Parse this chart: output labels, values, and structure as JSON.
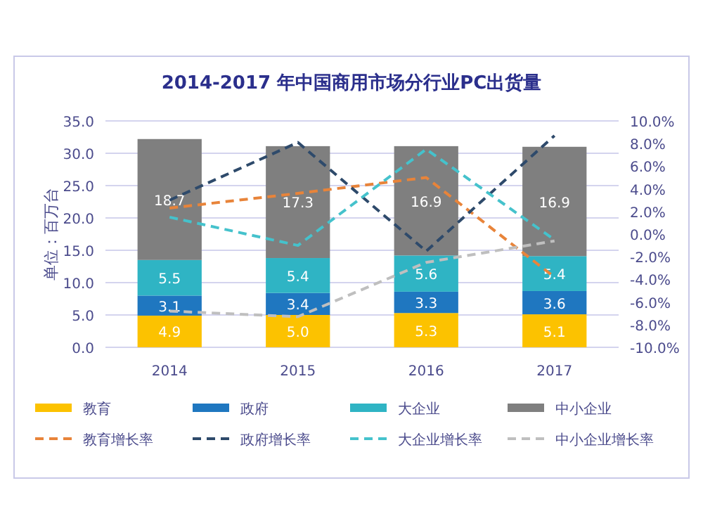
{
  "chart_data": {
    "type": "bar",
    "title": "2014-2017 年中国商用市场分行业PC出货量",
    "ylabel": "单位：百万台",
    "categories": [
      "2014",
      "2015",
      "2016",
      "2017"
    ],
    "stacked": true,
    "grid": "y",
    "legend": "bottom",
    "ylim": [
      0,
      35
    ],
    "yticks": [
      {
        "value": 0,
        "label": "0.0"
      },
      {
        "value": 5,
        "label": "5.0"
      },
      {
        "value": 10,
        "label": "10.0"
      },
      {
        "value": 15,
        "label": "15.0"
      },
      {
        "value": 20,
        "label": "20.0"
      },
      {
        "value": 25,
        "label": "25.0"
      },
      {
        "value": 30,
        "label": "30.0"
      },
      {
        "value": 35,
        "label": "35.0"
      }
    ],
    "y2lim": [
      -10,
      10
    ],
    "y2ticks": [
      {
        "value": -10,
        "label": "-10.0%"
      },
      {
        "value": -8,
        "label": "-8.0%"
      },
      {
        "value": -6,
        "label": "-6.0%"
      },
      {
        "value": -4,
        "label": "-4.0%"
      },
      {
        "value": -2,
        "label": "-2.0%"
      },
      {
        "value": 0,
        "label": "0.0%"
      },
      {
        "value": 2,
        "label": "2.0%"
      },
      {
        "value": 4,
        "label": "4.0%"
      },
      {
        "value": 6,
        "label": "6.0%"
      },
      {
        "value": 8,
        "label": "8.0%"
      },
      {
        "value": 10,
        "label": "10.0%"
      }
    ],
    "series": [
      {
        "name": "教育",
        "color": "#fcc200",
        "values": [
          4.9,
          5.0,
          5.3,
          5.1
        ],
        "value_labels": [
          "4.9",
          "5.0",
          "5.3",
          "5.1"
        ]
      },
      {
        "name": "政府",
        "color": "#1f77c0",
        "values": [
          3.1,
          3.4,
          3.3,
          3.6
        ],
        "value_labels": [
          "3.1",
          "3.4",
          "3.3",
          "3.6"
        ]
      },
      {
        "name": "大企业",
        "color": "#2fb4c4",
        "values": [
          5.5,
          5.4,
          5.6,
          5.4
        ],
        "value_labels": [
          "5.5",
          "5.4",
          "5.6",
          "5.4"
        ]
      },
      {
        "name": "中小企业",
        "color": "#7f7f7f",
        "values": [
          18.7,
          17.3,
          16.9,
          16.9
        ],
        "value_labels": [
          "18.7",
          "17.3",
          "16.9",
          "16.9"
        ]
      },
      {
        "name": "教育增长率",
        "type": "line",
        "axis": "y2",
        "color": "#e8843a",
        "line_style": "dashed",
        "marker": "none",
        "values": [
          2.3,
          3.6,
          5.0,
          -3.8
        ]
      },
      {
        "name": "政府增长率",
        "type": "line",
        "axis": "y2",
        "color": "#2e4a6b",
        "line_style": "dashed",
        "marker": "none",
        "values": [
          3.0,
          8.1,
          -1.5,
          8.7
        ]
      },
      {
        "name": "大企业增长率",
        "type": "line",
        "axis": "y2",
        "color": "#45c2cc",
        "line_style": "dashed",
        "marker": "none",
        "values": [
          1.5,
          -1.0,
          7.5,
          -0.5
        ]
      },
      {
        "name": "中小企业增长率",
        "type": "line",
        "axis": "y2",
        "color": "#bfbfbf",
        "line_style": "dashed",
        "marker": "none",
        "values": [
          -6.8,
          -7.3,
          -2.5,
          -0.6
        ]
      }
    ]
  }
}
